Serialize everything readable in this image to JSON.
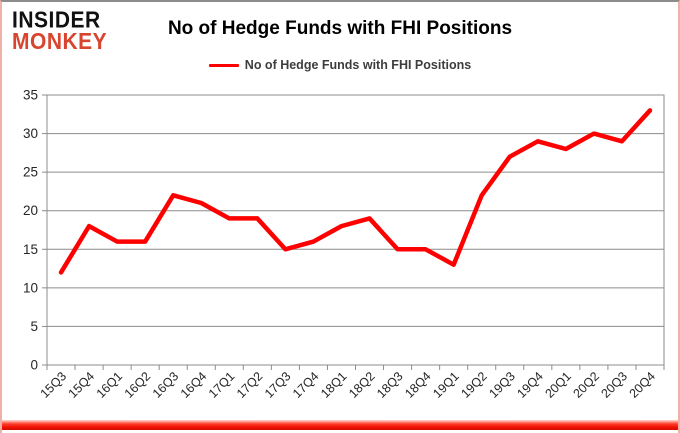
{
  "logo": {
    "line1": "INSIDER",
    "line2": "MONKEY"
  },
  "header": {
    "title": "No of Hedge Funds with FHI Positions"
  },
  "legend": {
    "label": "No of Hedge Funds with FHI Positions",
    "swatch_color": "#ff0000"
  },
  "colors": {
    "series_line": "#ff0000",
    "gridline": "#8c8c8c",
    "axis_text": "#262626",
    "logo_accent": "#d8452e",
    "bottom_bar": "#ec1000",
    "frame_side_border": "#efb1a7",
    "frame_top_border": "#8c8c8c"
  },
  "chart_data": {
    "type": "line",
    "title": "No of Hedge Funds with FHI Positions",
    "xlabel": "",
    "ylabel": "",
    "categories": [
      "15Q3",
      "15Q4",
      "16Q1",
      "16Q2",
      "16Q3",
      "16Q4",
      "17Q1",
      "17Q2",
      "17Q3",
      "17Q4",
      "18Q1",
      "18Q2",
      "18Q3",
      "18Q4",
      "19Q1",
      "19Q2",
      "19Q3",
      "19Q4",
      "20Q1",
      "20Q2",
      "20Q3",
      "20Q4"
    ],
    "series": [
      {
        "name": "No of Hedge Funds with FHI Positions",
        "color": "#ff0000",
        "values": [
          12,
          18,
          16,
          16,
          22,
          21,
          19,
          19,
          15,
          16,
          18,
          19,
          15,
          15,
          13,
          22,
          27,
          29,
          28,
          30,
          29,
          33
        ]
      }
    ],
    "ylim": [
      0,
      35
    ],
    "yticks": [
      0,
      5,
      10,
      15,
      20,
      25,
      30,
      35
    ],
    "grid": true,
    "legend_position": "top"
  }
}
